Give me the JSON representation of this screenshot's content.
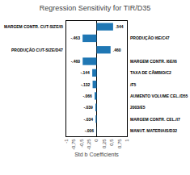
{
  "chart_data": {
    "type": "bar",
    "orientation": "horizontal",
    "title": "Regression Sensitivity for TIR/D35",
    "xlabel": "Std b Coefficients",
    "categories": [
      "MARGEM CONTR. CUT-SIZE/I5",
      "PRODUÇÃO I6E/C47",
      "PRODUÇÃO CUT-SIZE/D47",
      "MARGEM CONTR. I6E/I6",
      "TAXA DE CÂMBIO/C2",
      "/F5",
      "AUMENTO VOLUME CEL./D55",
      "2003/E5",
      "MARGEM CONTR. CEL./I7",
      "MANUT. MATERIAIS/D32"
    ],
    "values": [
      0.544,
      -0.463,
      0.46,
      -0.46,
      -0.144,
      -0.132,
      -0.066,
      -0.039,
      -0.034,
      -0.006
    ],
    "value_labels": [
      ".544",
      "-.463",
      ".460",
      "-.460",
      "-.144",
      "-.132",
      "-.066",
      "-.039",
      "-.034",
      "-.006"
    ],
    "data_labels": true,
    "xlim": [
      -1,
      1
    ],
    "xticks": [
      -1,
      {
        "value": -0.75,
        "label": "-0,75"
      },
      {
        "value": -0.5,
        "label": "-0,5"
      },
      {
        "value": -0.25,
        "label": "-0,25"
      },
      0,
      {
        "value": 0.25,
        "label": "0,25"
      },
      {
        "value": 0.5,
        "label": "0,5"
      },
      {
        "value": 0.75,
        "label": "0,75"
      },
      1
    ],
    "grid": false
  }
}
